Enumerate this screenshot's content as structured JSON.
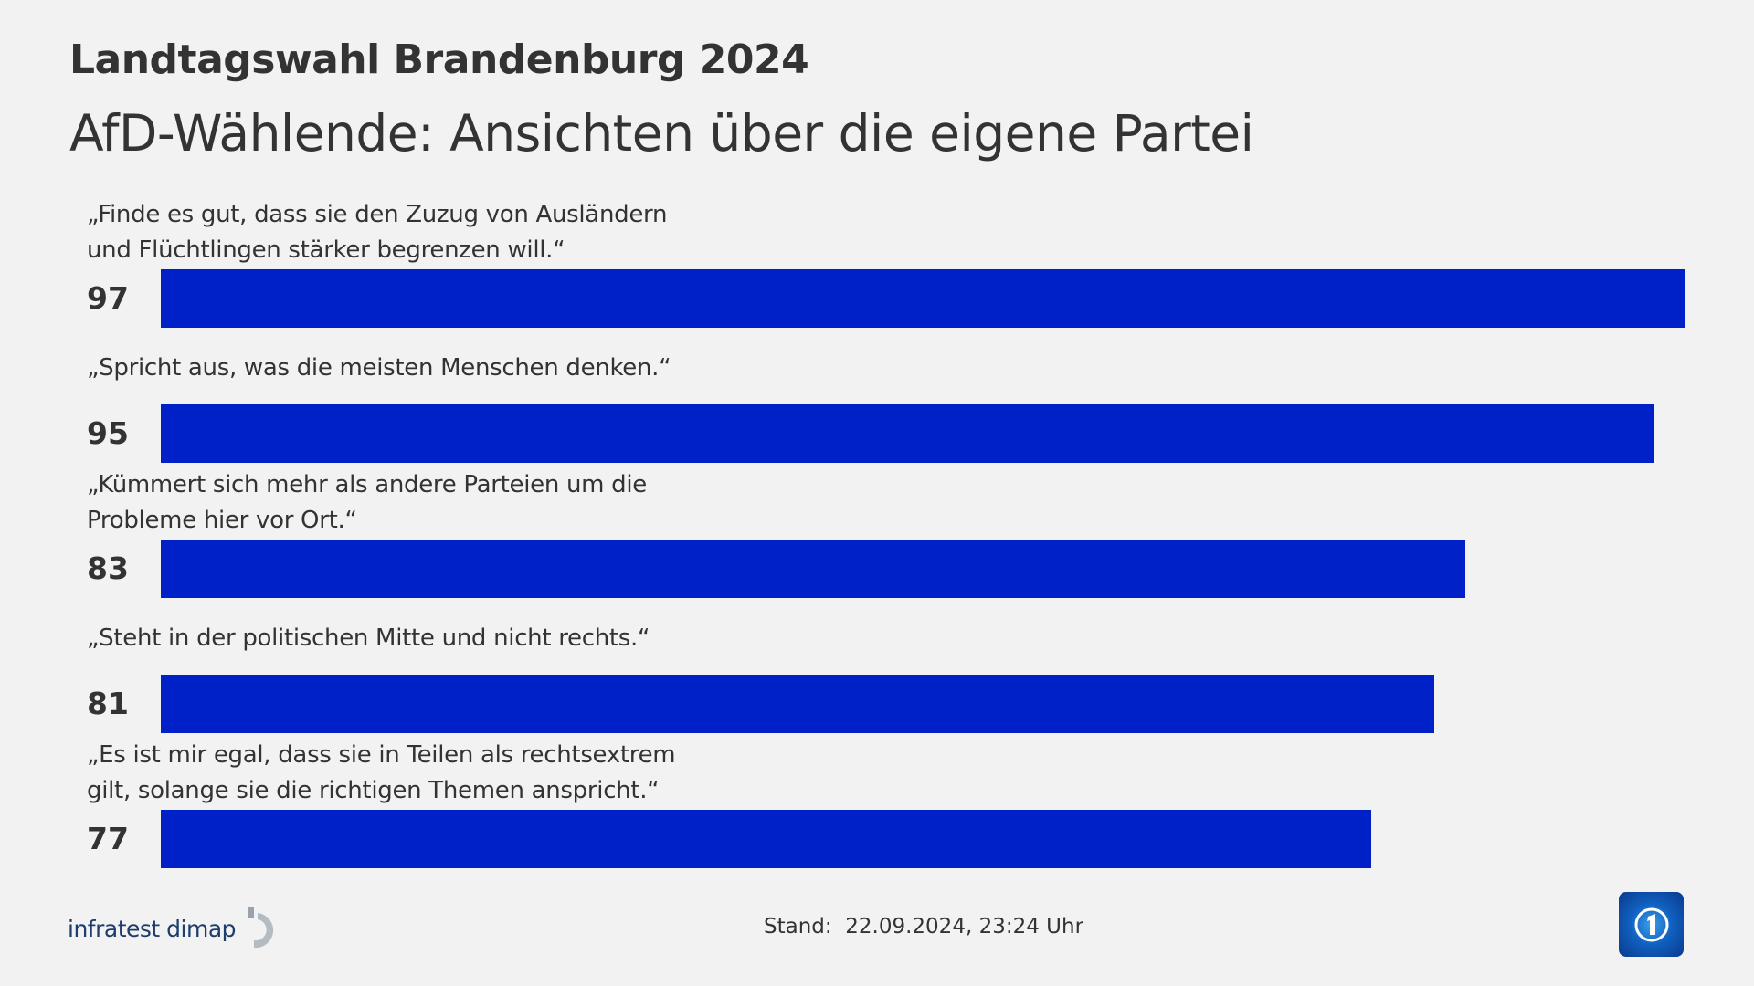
{
  "header": {
    "title": "Landtagswahl Brandenburg 2024",
    "subtitle": "AfD-Wählende: Ansichten über die eigene Partei"
  },
  "chart_data": {
    "type": "bar",
    "orientation": "horizontal",
    "title": "Landtagswahl Brandenburg 2024",
    "subtitle": "AfD-Wählende: Ansichten über die eigene Partei",
    "xlim": [
      0,
      100
    ],
    "grid": false,
    "bar_color": "#0021c8",
    "categories": [
      "„Finde es gut, dass sie den Zuzug von Ausländern\nund Flüchtlingen stärker begrenzen will.“",
      "„Spricht aus, was die meisten Menschen denken.“",
      "„Kümmert sich mehr als andere Parteien um die\nProbleme hier vor Ort.“",
      "„Steht in der politischen Mitte und nicht rechts.“",
      "„Es ist mir egal, dass sie in Teilen als rechtsextrem\ngilt, solange sie die richtigen Themen anspricht.“"
    ],
    "values": [
      97,
      95,
      83,
      81,
      77
    ],
    "value_labels": [
      "97",
      "95",
      "83",
      "81",
      "77"
    ]
  },
  "footer": {
    "source_logo": "infratest dimap",
    "stand": "Stand:  22.09.2024, 23:24 Uhr",
    "broadcaster_logo_icon": "ard-tagesschau-globe-icon"
  }
}
